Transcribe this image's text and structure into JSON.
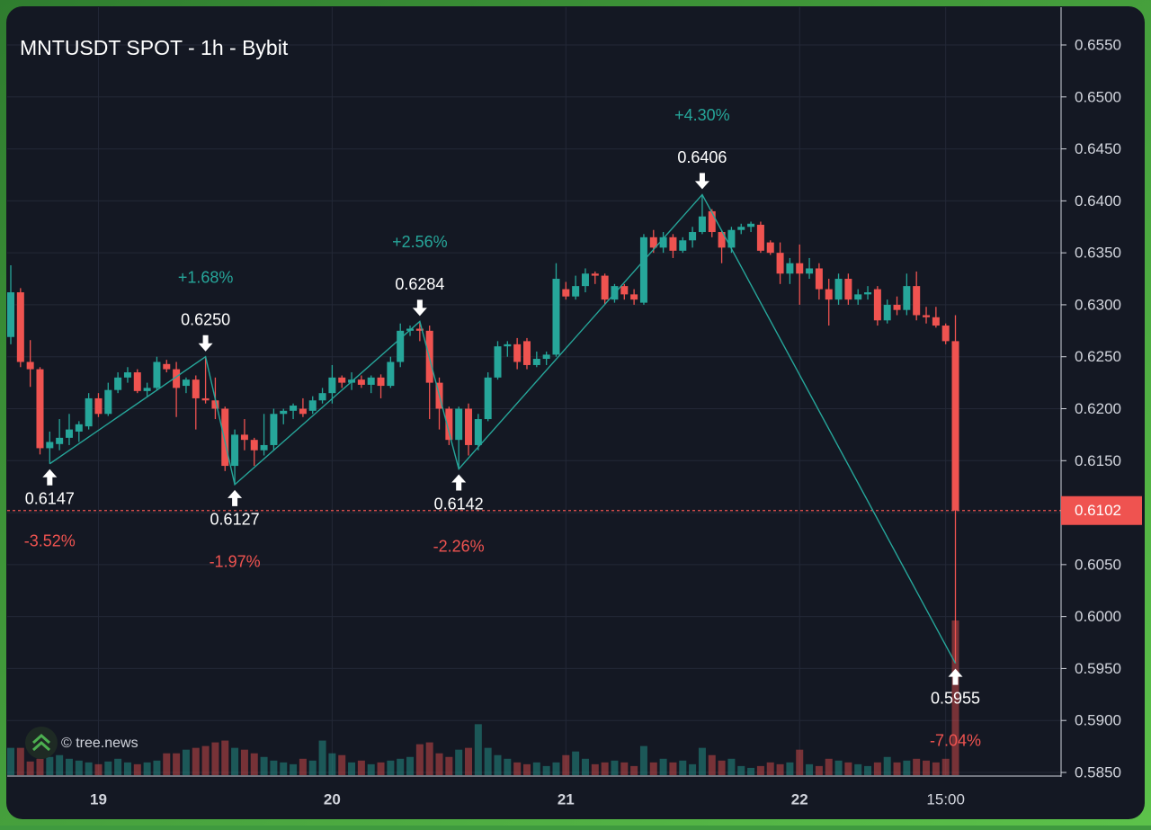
{
  "chart_data": {
    "type": "candlestick",
    "title": "MNTUSDT SPOT - 1h - Bybit",
    "watermark": "© tree.news",
    "categories": [
      null,
      null,
      null,
      null,
      null,
      null,
      null,
      null,
      null,
      "19",
      null,
      null,
      null,
      null,
      null,
      null,
      null,
      null,
      null,
      null,
      null,
      null,
      null,
      null,
      null,
      null,
      null,
      null,
      null,
      null,
      null,
      null,
      null,
      "20",
      null,
      null,
      null,
      null,
      null,
      null,
      null,
      null,
      null,
      null,
      null,
      null,
      null,
      null,
      null,
      null,
      null,
      null,
      null,
      null,
      null,
      null,
      null,
      "21",
      null,
      null,
      null,
      null,
      null,
      null,
      null,
      null,
      null,
      null,
      null,
      null,
      null,
      null,
      null,
      null,
      null,
      null,
      null,
      null,
      null,
      null,
      null,
      "22",
      null,
      null,
      null,
      null,
      null,
      null,
      null,
      null,
      null,
      null,
      null,
      null,
      null,
      null,
      "15:00",
      null
    ],
    "open": [
      0.6269,
      0.6312,
      0.6245,
      0.6238,
      0.6162,
      0.6166,
      0.6172,
      0.6178,
      0.6183,
      0.621,
      0.6195,
      0.6218,
      0.623,
      0.6235,
      0.6217,
      0.622,
      0.6243,
      0.6238,
      0.6222,
      0.6228,
      0.621,
      0.6208,
      0.62,
      0.6145,
      0.6175,
      0.617,
      0.616,
      0.6165,
      0.6195,
      0.6198,
      0.62,
      0.6198,
      0.6208,
      0.6215,
      0.623,
      0.6225,
      0.6228,
      0.6223,
      0.623,
      0.6222,
      0.6245,
      0.6275,
      0.6277,
      0.6275,
      0.6225,
      0.62,
      0.617,
      0.62,
      0.6165,
      0.619,
      0.623,
      0.626,
      0.6262,
      0.6265,
      0.6242,
      0.6248,
      0.6252,
      0.6315,
      0.6308,
      0.6318,
      0.633,
      0.6328,
      0.6305,
      0.6318,
      0.631,
      0.6302,
      0.6365,
      0.6355,
      0.6365,
      0.6352,
      0.6362,
      0.637,
      0.639,
      0.637,
      0.6355,
      0.6372,
      0.6375,
      0.6377,
      0.636,
      0.635,
      0.633,
      0.634,
      0.633,
      0.6335,
      0.6315,
      0.6305,
      0.6325,
      0.6305,
      0.631,
      0.6315,
      0.6285,
      0.63,
      0.6295,
      0.6318,
      0.629,
      0.6288,
      0.628,
      0.6265
    ],
    "high": [
      0.6338,
      0.6316,
      0.6266,
      0.624,
      0.6178,
      0.619,
      0.6195,
      0.6188,
      0.6215,
      0.6215,
      0.6225,
      0.6235,
      0.624,
      0.6238,
      0.6225,
      0.625,
      0.6247,
      0.6245,
      0.623,
      0.6232,
      0.625,
      0.623,
      0.6202,
      0.618,
      0.619,
      0.6172,
      0.6195,
      0.62,
      0.62,
      0.6205,
      0.621,
      0.6212,
      0.622,
      0.6242,
      0.6232,
      0.6235,
      0.6232,
      0.6232,
      0.6233,
      0.625,
      0.6282,
      0.628,
      0.6284,
      0.628,
      0.623,
      0.6202,
      0.6202,
      0.6205,
      0.6195,
      0.6235,
      0.6265,
      0.6265,
      0.6268,
      0.6268,
      0.6255,
      0.6255,
      0.634,
      0.6322,
      0.6328,
      0.6335,
      0.6332,
      0.633,
      0.632,
      0.632,
      0.6315,
      0.6368,
      0.6372,
      0.637,
      0.6368,
      0.6365,
      0.6375,
      0.6406,
      0.6392,
      0.6372,
      0.6375,
      0.6378,
      0.638,
      0.638,
      0.6362,
      0.636,
      0.6345,
      0.6358,
      0.6345,
      0.634,
      0.6325,
      0.633,
      0.633,
      0.6315,
      0.6318,
      0.6318,
      0.6305,
      0.6308,
      0.633,
      0.6332,
      0.6298,
      0.6298,
      0.6282,
      0.629
    ],
    "low": [
      0.6262,
      0.624,
      0.6221,
      0.6156,
      0.6147,
      0.616,
      0.6165,
      0.6168,
      0.618,
      0.6192,
      0.6193,
      0.6215,
      0.6225,
      0.6215,
      0.6212,
      0.6218,
      0.6235,
      0.6192,
      0.6215,
      0.618,
      0.6205,
      0.619,
      0.614,
      0.6127,
      0.616,
      0.6145,
      0.6155,
      0.616,
      0.6185,
      0.619,
      0.6192,
      0.6195,
      0.6205,
      0.6205,
      0.622,
      0.6218,
      0.622,
      0.6215,
      0.621,
      0.622,
      0.624,
      0.627,
      0.6265,
      0.619,
      0.618,
      0.6165,
      0.6142,
      0.6155,
      0.616,
      0.6188,
      0.6228,
      0.625,
      0.6238,
      0.6238,
      0.624,
      0.6242,
      0.625,
      0.6305,
      0.6305,
      0.6312,
      0.632,
      0.63,
      0.6302,
      0.6305,
      0.63,
      0.63,
      0.635,
      0.635,
      0.6345,
      0.635,
      0.6355,
      0.6368,
      0.6365,
      0.634,
      0.635,
      0.6368,
      0.637,
      0.635,
      0.6348,
      0.632,
      0.632,
      0.63,
      0.6325,
      0.6305,
      0.628,
      0.63,
      0.63,
      0.63,
      0.6305,
      0.628,
      0.6282,
      0.629,
      0.629,
      0.6285,
      0.6282,
      0.6278,
      0.6262,
      0.5955
    ],
    "close": [
      0.6312,
      0.6245,
      0.6238,
      0.6162,
      0.6168,
      0.6172,
      0.618,
      0.6185,
      0.621,
      0.6195,
      0.6218,
      0.623,
      0.6235,
      0.6217,
      0.622,
      0.6245,
      0.6238,
      0.622,
      0.6228,
      0.621,
      0.6208,
      0.62,
      0.6145,
      0.6175,
      0.617,
      0.616,
      0.6165,
      0.6195,
      0.6198,
      0.6203,
      0.6195,
      0.6208,
      0.6215,
      0.623,
      0.6225,
      0.6228,
      0.6223,
      0.623,
      0.6222,
      0.6245,
      0.6275,
      0.6277,
      0.6275,
      0.6225,
      0.62,
      0.617,
      0.62,
      0.6165,
      0.619,
      0.623,
      0.626,
      0.6262,
      0.6245,
      0.6242,
      0.6248,
      0.6252,
      0.6325,
      0.6308,
      0.6318,
      0.633,
      0.6328,
      0.6305,
      0.6318,
      0.631,
      0.6305,
      0.6365,
      0.6355,
      0.6365,
      0.6352,
      0.6362,
      0.637,
      0.6385,
      0.637,
      0.6355,
      0.6372,
      0.6375,
      0.6378,
      0.6352,
      0.635,
      0.633,
      0.634,
      0.633,
      0.6335,
      0.6315,
      0.6305,
      0.6325,
      0.6305,
      0.631,
      0.6312,
      0.6285,
      0.63,
      0.6295,
      0.6318,
      0.629,
      0.6288,
      0.628,
      0.6265,
      0.6102
    ],
    "volume": [
      30,
      30,
      15,
      18,
      20,
      22,
      18,
      16,
      14,
      12,
      15,
      18,
      14,
      12,
      14,
      16,
      24,
      24,
      28,
      30,
      32,
      36,
      38,
      30,
      28,
      24,
      20,
      16,
      14,
      12,
      18,
      16,
      38,
      24,
      22,
      14,
      16,
      12,
      14,
      16,
      18,
      20,
      34,
      36,
      24,
      20,
      28,
      30,
      56,
      30,
      22,
      18,
      14,
      12,
      14,
      10,
      14,
      22,
      26,
      18,
      12,
      14,
      16,
      14,
      10,
      32,
      14,
      18,
      14,
      16,
      12,
      30,
      22,
      16,
      18,
      10,
      8,
      10,
      14,
      12,
      14,
      28,
      12,
      10,
      18,
      16,
      14,
      12,
      10,
      14,
      20,
      14,
      16,
      18,
      16,
      14,
      18,
      170
    ],
    "up_color": "#26a69a",
    "down_color": "#ef5350",
    "ylim": [
      0.585,
      0.655
    ],
    "yticks": [
      {
        "value": 0.585,
        "label": "0.5850"
      },
      {
        "value": 0.59,
        "label": "0.5900"
      },
      {
        "value": 0.595,
        "label": "0.5950"
      },
      {
        "value": 0.6,
        "label": "0.6000"
      },
      {
        "value": 0.605,
        "label": "0.6050"
      },
      {
        "value": 0.61,
        "label": "0.6100"
      },
      {
        "value": 0.615,
        "label": "0.6150"
      },
      {
        "value": 0.62,
        "label": "0.6200"
      },
      {
        "value": 0.625,
        "label": "0.6250"
      },
      {
        "value": 0.63,
        "label": "0.6300"
      },
      {
        "value": 0.635,
        "label": "0.6350"
      },
      {
        "value": 0.64,
        "label": "0.6400"
      },
      {
        "value": 0.645,
        "label": "0.6450"
      },
      {
        "value": 0.65,
        "label": "0.6500"
      },
      {
        "value": 0.655,
        "label": "0.6550"
      }
    ],
    "grid": true,
    "last_price": {
      "value": 0.6102,
      "label": "0.6102"
    },
    "pivots": [
      {
        "index": 4,
        "value": 0.6147,
        "change": {
          "value": -3.52,
          "label": "-3.52%"
        }
      },
      {
        "index": 20,
        "value": 0.625,
        "label": "0.6250",
        "change": {
          "value": 1.68,
          "label": "+1.68%"
        }
      },
      {
        "index": 23,
        "value": 0.6127,
        "change": {
          "value": -1.97,
          "label": "-1.97%"
        }
      },
      {
        "index": 42,
        "value": 0.6284,
        "change": {
          "value": 2.56,
          "label": "+2.56%"
        }
      },
      {
        "index": 46,
        "value": 0.6142,
        "change": {
          "value": -2.26,
          "label": "-2.26%"
        }
      },
      {
        "index": 71,
        "value": 0.6406,
        "change": {
          "value": 4.3,
          "label": "+4.30%"
        }
      },
      {
        "index": 97,
        "value": 0.5955,
        "change": {
          "value": -7.04,
          "label": "-7.04%"
        }
      }
    ]
  }
}
